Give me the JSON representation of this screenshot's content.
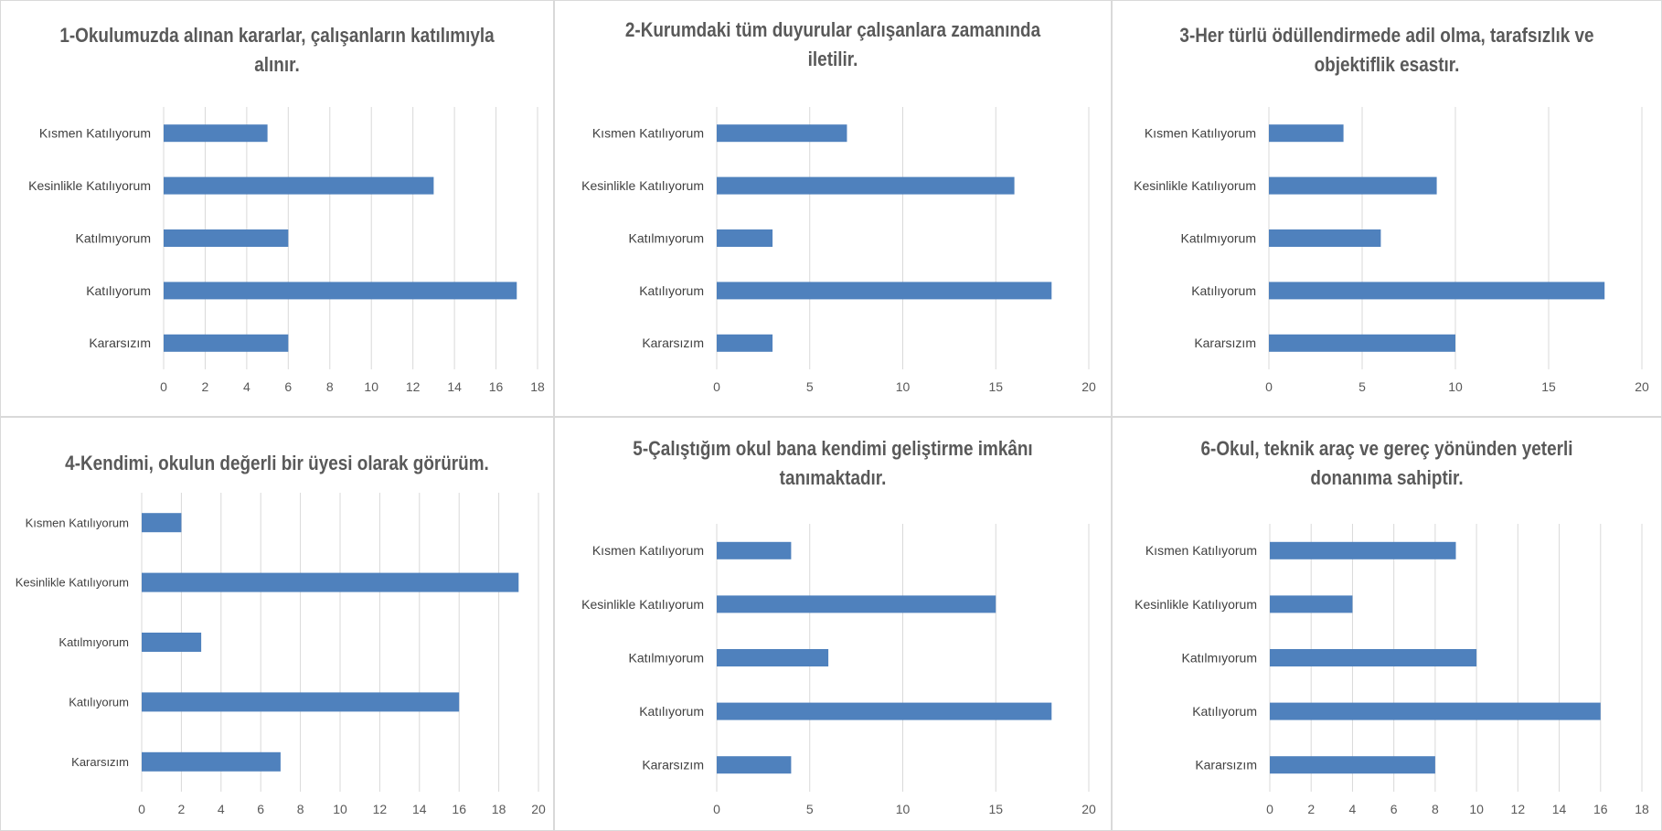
{
  "chart_data": [
    {
      "type": "bar",
      "orientation": "horizontal",
      "title": "1-Okulumuzda alınan kararlar,  çalışanların katılımıyla alınır.",
      "categories": [
        "Kısmen Katılıyorum",
        "Kesinlikle Katılıyorum",
        "Katılmıyorum",
        "Katılıyorum",
        "Kararsızım"
      ],
      "values": [
        5,
        13,
        6,
        17,
        6
      ],
      "xlim": [
        0,
        18
      ],
      "ticks": [
        0,
        2,
        4,
        6,
        8,
        10,
        12,
        14,
        16,
        18
      ],
      "grid": true,
      "legend": "none",
      "color": "#4f81bd"
    },
    {
      "type": "bar",
      "orientation": "horizontal",
      "title": "2-Kurumdaki tüm duyurular çalışanlara zamanında iletilir.",
      "categories": [
        "Kısmen Katılıyorum",
        "Kesinlikle Katılıyorum",
        "Katılmıyorum",
        "Katılıyorum",
        "Kararsızım"
      ],
      "values": [
        7,
        16,
        3,
        18,
        3
      ],
      "xlim": [
        0,
        20
      ],
      "ticks": [
        0,
        5,
        10,
        15,
        20
      ],
      "grid": true,
      "legend": "none",
      "color": "#4f81bd"
    },
    {
      "type": "bar",
      "orientation": "horizontal",
      "title": "3-Her türlü ödüllendirmede adil olma, tarafsızlık ve objektiflik esastır.",
      "categories": [
        "Kısmen Katılıyorum",
        "Kesinlikle Katılıyorum",
        "Katılmıyorum",
        "Katılıyorum",
        "Kararsızım"
      ],
      "values": [
        4,
        9,
        6,
        18,
        10
      ],
      "xlim": [
        0,
        20
      ],
      "ticks": [
        0,
        5,
        10,
        15,
        20
      ],
      "grid": true,
      "legend": "none",
      "color": "#4f81bd"
    },
    {
      "type": "bar",
      "orientation": "horizontal",
      "title": "4-Kendimi, okulun değerli bir üyesi olarak görürüm.",
      "categories": [
        "Kısmen Katılıyorum",
        "Kesinlikle Katılıyorum",
        "Katılmıyorum",
        "Katılıyorum",
        "Kararsızım"
      ],
      "values": [
        2,
        19,
        3,
        16,
        7
      ],
      "xlim": [
        0,
        20
      ],
      "ticks": [
        0,
        2,
        4,
        6,
        8,
        10,
        12,
        14,
        16,
        18,
        20
      ],
      "grid": true,
      "legend": "none",
      "color": "#4f81bd"
    },
    {
      "type": "bar",
      "orientation": "horizontal",
      "title": "5-Çalıştığım okul bana kendimi geliştirme imkânı tanımaktadır.",
      "categories": [
        "Kısmen Katılıyorum",
        "Kesinlikle Katılıyorum",
        "Katılmıyorum",
        "Katılıyorum",
        "Kararsızım"
      ],
      "values": [
        4,
        15,
        6,
        18,
        4
      ],
      "xlim": [
        0,
        20
      ],
      "ticks": [
        0,
        5,
        10,
        15,
        20
      ],
      "grid": true,
      "legend": "none",
      "color": "#4f81bd"
    },
    {
      "type": "bar",
      "orientation": "horizontal",
      "title": "6-Okul, teknik araç  ve gereç yönünden yeterli donanıma sahiptir.",
      "categories": [
        "Kısmen Katılıyorum",
        "Kesinlikle Katılıyorum",
        "Katılmıyorum",
        "Katılıyorum",
        "Kararsızım"
      ],
      "values": [
        9,
        4,
        10,
        16,
        8
      ],
      "xlim": [
        0,
        18
      ],
      "ticks": [
        0,
        2,
        4,
        6,
        8,
        10,
        12,
        14,
        16,
        18
      ],
      "grid": true,
      "legend": "none",
      "color": "#4f81bd"
    }
  ]
}
